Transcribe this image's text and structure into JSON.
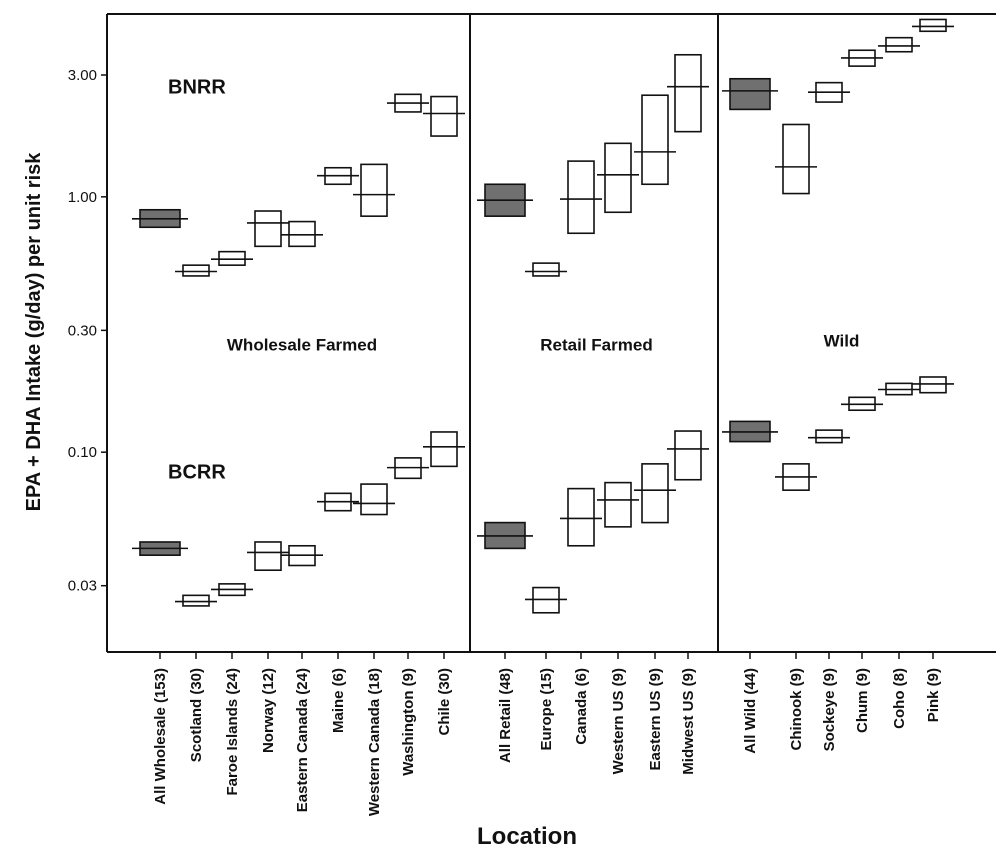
{
  "chart_data": {
    "type": "boxplot",
    "xlabel": "Location",
    "ylabel": "EPA + DHA Intake (g/day) per unit risk",
    "yscale": "log",
    "ylim": [
      0.0165,
      5.2
    ],
    "yticks": [
      0.03,
      0.1,
      0.3,
      1.0,
      3.0
    ],
    "ytick_labels": [
      "0.03",
      "0.10",
      "0.30",
      "1.00",
      "3.00"
    ],
    "metric_labels": [
      {
        "label": "BNRR",
        "group": "Wholesale Farmed",
        "at_value": 2.7
      },
      {
        "label": "BCRR",
        "group": "Wholesale Farmed",
        "at_value": 0.084
      }
    ],
    "groups": [
      {
        "name": "Wholesale Farmed",
        "label_value": 0.3,
        "categories_start": 0,
        "categories_end": 8
      },
      {
        "name": "Retail Farmed",
        "label_value": 0.3,
        "categories_start": 9,
        "categories_end": 14
      },
      {
        "name": "Wild",
        "label_value": 0.31,
        "categories_start": 15,
        "categories_end": 20
      }
    ],
    "categories": [
      "All Wholesale (153)",
      "Scotland (30)",
      "Faroe Islands (24)",
      "Norway (12)",
      "Eastern Canada (24)",
      "Maine (6)",
      "Western Canada (18)",
      "Washington (9)",
      "Chile (30)",
      "All Retail (48)",
      "Europe (15)",
      "Canada (6)",
      "Western US (9)",
      "Eastern US (9)",
      "Midwest US (9)",
      "All Wild (44)",
      "Chinook (9)",
      "Sockeye (9)",
      "Chum (9)",
      "Coho (8)",
      "Pink (9)"
    ],
    "series": [
      {
        "name": "BNRR",
        "boxes": [
          {
            "low": 0.76,
            "mid": 0.82,
            "high": 0.89,
            "filled": true
          },
          {
            "low": 0.49,
            "mid": 0.51,
            "high": 0.54,
            "filled": false
          },
          {
            "low": 0.54,
            "mid": 0.57,
            "high": 0.61,
            "filled": false
          },
          {
            "low": 0.64,
            "mid": 0.79,
            "high": 0.88,
            "filled": false
          },
          {
            "low": 0.64,
            "mid": 0.71,
            "high": 0.8,
            "filled": false
          },
          {
            "low": 1.12,
            "mid": 1.21,
            "high": 1.3,
            "filled": false
          },
          {
            "low": 0.84,
            "mid": 1.02,
            "high": 1.34,
            "filled": false
          },
          {
            "low": 2.15,
            "mid": 2.33,
            "high": 2.52,
            "filled": false
          },
          {
            "low": 1.73,
            "mid": 2.12,
            "high": 2.47,
            "filled": false
          },
          {
            "low": 0.84,
            "mid": 0.97,
            "high": 1.12,
            "filled": true
          },
          {
            "low": 0.49,
            "mid": 0.51,
            "high": 0.55,
            "filled": false
          },
          {
            "low": 0.72,
            "mid": 0.98,
            "high": 1.38,
            "filled": false
          },
          {
            "low": 0.87,
            "mid": 1.22,
            "high": 1.62,
            "filled": false
          },
          {
            "low": 1.12,
            "mid": 1.5,
            "high": 2.5,
            "filled": false
          },
          {
            "low": 1.8,
            "mid": 2.7,
            "high": 3.6,
            "filled": false
          },
          {
            "low": 2.2,
            "mid": 2.6,
            "high": 2.9,
            "filled": true
          },
          {
            "low": 1.03,
            "mid": 1.31,
            "high": 1.92,
            "filled": false
          },
          {
            "low": 2.35,
            "mid": 2.57,
            "high": 2.8,
            "filled": false
          },
          {
            "low": 3.25,
            "mid": 3.5,
            "high": 3.75,
            "filled": false
          },
          {
            "low": 3.7,
            "mid": 3.9,
            "high": 4.2,
            "filled": false
          },
          {
            "low": 4.45,
            "mid": 4.65,
            "high": 4.95,
            "filled": false
          }
        ]
      },
      {
        "name": "BCRR",
        "boxes": [
          {
            "low": 0.0395,
            "mid": 0.042,
            "high": 0.0445,
            "filled": true
          },
          {
            "low": 0.025,
            "mid": 0.026,
            "high": 0.0275,
            "filled": false
          },
          {
            "low": 0.0275,
            "mid": 0.029,
            "high": 0.0305,
            "filled": false
          },
          {
            "low": 0.0345,
            "mid": 0.0405,
            "high": 0.0445,
            "filled": false
          },
          {
            "low": 0.036,
            "mid": 0.0395,
            "high": 0.043,
            "filled": false
          },
          {
            "low": 0.059,
            "mid": 0.064,
            "high": 0.069,
            "filled": false
          },
          {
            "low": 0.057,
            "mid": 0.063,
            "high": 0.075,
            "filled": false
          },
          {
            "low": 0.079,
            "mid": 0.087,
            "high": 0.095,
            "filled": false
          },
          {
            "low": 0.088,
            "mid": 0.105,
            "high": 0.12,
            "filled": false
          },
          {
            "low": 0.042,
            "mid": 0.047,
            "high": 0.053,
            "filled": true
          },
          {
            "low": 0.0235,
            "mid": 0.0265,
            "high": 0.0295,
            "filled": false
          },
          {
            "low": 0.043,
            "mid": 0.055,
            "high": 0.072,
            "filled": false
          },
          {
            "low": 0.051,
            "mid": 0.065,
            "high": 0.076,
            "filled": false
          },
          {
            "low": 0.053,
            "mid": 0.071,
            "high": 0.09,
            "filled": false
          },
          {
            "low": 0.078,
            "mid": 0.103,
            "high": 0.121,
            "filled": false
          },
          {
            "low": 0.11,
            "mid": 0.12,
            "high": 0.132,
            "filled": true
          },
          {
            "low": 0.071,
            "mid": 0.08,
            "high": 0.09,
            "filled": false
          },
          {
            "low": 0.109,
            "mid": 0.114,
            "high": 0.122,
            "filled": false
          },
          {
            "low": 0.146,
            "mid": 0.154,
            "high": 0.164,
            "filled": false
          },
          {
            "low": 0.168,
            "mid": 0.176,
            "high": 0.186,
            "filled": false
          },
          {
            "low": 0.171,
            "mid": 0.185,
            "high": 0.197,
            "filled": false
          }
        ]
      }
    ],
    "colors": {
      "filled_box": "#707070",
      "box_stroke": "#111111",
      "background": "#ffffff"
    },
    "legend": "none",
    "grid": false
  }
}
